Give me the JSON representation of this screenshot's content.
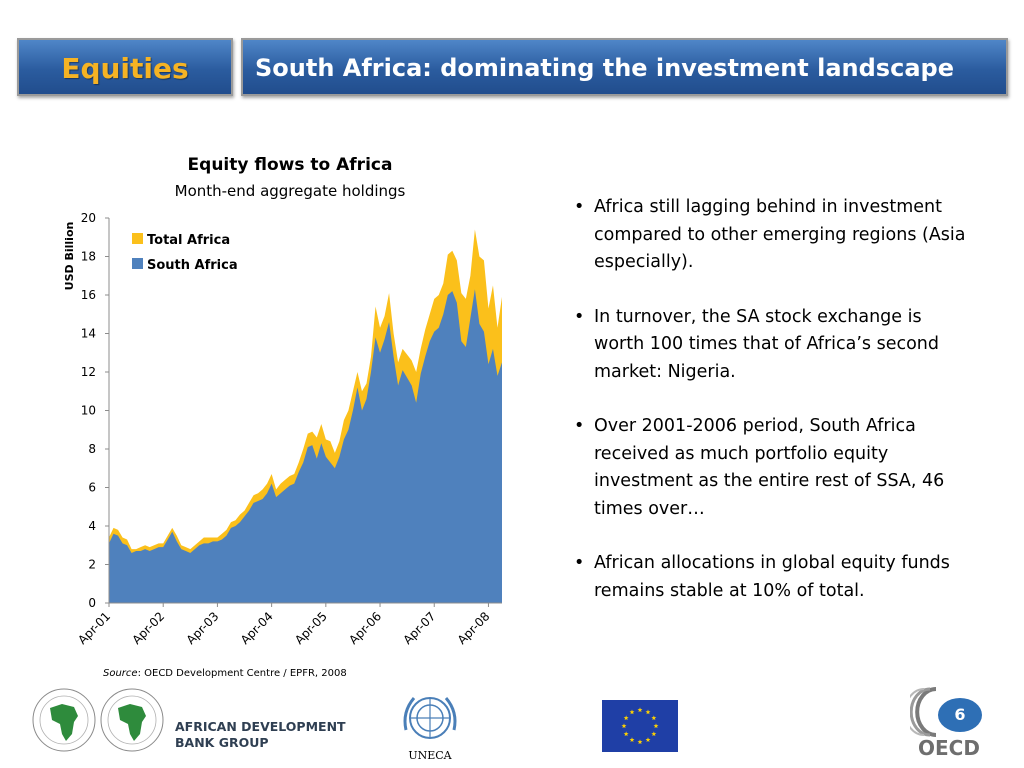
{
  "header": {
    "section": "Equities",
    "headline": "South Africa: dominating the investment landscape"
  },
  "chart_data": {
    "type": "area",
    "title": "Equity flows to Africa",
    "subtitle": "Month-end aggregate holdings",
    "ylabel": "USD Billion",
    "ylim": [
      0,
      20
    ],
    "yticks": [
      0,
      2,
      4,
      6,
      8,
      10,
      12,
      14,
      16,
      18,
      20
    ],
    "x_tick_labels": [
      "Apr-01",
      "Apr-02",
      "Apr-03",
      "Apr-04",
      "Apr-05",
      "Apr-06",
      "Apr-07",
      "Apr-08"
    ],
    "legend_position": "top-left",
    "grid": false,
    "x_start": "Apr-01",
    "frequency": "monthly",
    "series": [
      {
        "name": "Total Africa",
        "color": "#fbc01b",
        "values": [
          3.4,
          3.9,
          3.8,
          3.4,
          3.3,
          2.8,
          2.8,
          2.9,
          3.0,
          2.9,
          3.0,
          3.1,
          3.1,
          3.5,
          3.9,
          3.5,
          3.0,
          2.9,
          2.8,
          3.0,
          3.2,
          3.4,
          3.4,
          3.4,
          3.4,
          3.6,
          3.8,
          4.2,
          4.3,
          4.6,
          4.8,
          5.2,
          5.6,
          5.7,
          5.9,
          6.2,
          6.7,
          5.9,
          6.2,
          6.4,
          6.6,
          6.7,
          7.3,
          8.0,
          8.8,
          8.9,
          8.6,
          9.3,
          8.5,
          8.4,
          7.8,
          8.4,
          9.5,
          10.0,
          11.0,
          12.0,
          11.0,
          11.4,
          12.8,
          15.4,
          14.3,
          14.9,
          16.1,
          14.0,
          12.5,
          13.2,
          12.9,
          12.6,
          12.0,
          13.2,
          14.2,
          15.0,
          15.8,
          16.0,
          16.6,
          18.1,
          18.3,
          17.8,
          16.1,
          15.8,
          17.0,
          19.4,
          18.0,
          17.8,
          15.3,
          16.5,
          14.3,
          15.9
        ]
      },
      {
        "name": "South Africa",
        "color": "#4f81bd",
        "values": [
          3.1,
          3.6,
          3.5,
          3.1,
          3.0,
          2.6,
          2.7,
          2.7,
          2.8,
          2.7,
          2.8,
          2.9,
          2.9,
          3.3,
          3.7,
          3.2,
          2.8,
          2.7,
          2.6,
          2.8,
          3.0,
          3.1,
          3.1,
          3.2,
          3.2,
          3.3,
          3.5,
          3.9,
          4.0,
          4.2,
          4.5,
          4.8,
          5.2,
          5.3,
          5.4,
          5.7,
          6.2,
          5.5,
          5.7,
          5.9,
          6.1,
          6.2,
          6.8,
          7.3,
          8.1,
          8.2,
          7.5,
          8.3,
          7.6,
          7.3,
          7.0,
          7.6,
          8.5,
          9.0,
          10.0,
          11.2,
          10.0,
          10.6,
          12.0,
          13.8,
          13.0,
          13.7,
          14.6,
          12.8,
          11.3,
          12.1,
          11.7,
          11.3,
          10.4,
          11.9,
          12.8,
          13.6,
          14.1,
          14.3,
          15.0,
          16.0,
          16.2,
          15.6,
          13.6,
          13.3,
          14.8,
          16.3,
          14.5,
          14.1,
          12.4,
          13.2,
          11.8,
          12.5
        ]
      }
    ]
  },
  "bullets": [
    " Africa still lagging behind in investment compared to other emerging regions (Asia especially).",
    " In turnover, the SA stock exchange is worth 100 times that of Africa’s second market: Nigeria.",
    " Over 2001-2006 period, South Africa received as much portfolio equity investment as the entire rest of SSA, 46 times over…",
    "African allocations in global equity funds remains stable at 10% of total."
  ],
  "source": {
    "label": "Source",
    "text": ": OECD Development Centre / EPFR, 2008"
  },
  "footer": {
    "afdb_line1": "AFRICAN DEVELOPMENT",
    "afdb_line2": "BANK GROUP",
    "uneca": "UNECA",
    "page_number": "6",
    "oecd": "OECD"
  },
  "colors": {
    "title_bar": "#2b5c9f",
    "accent_gold": "#f5b324",
    "africa_green": "#2e8b3c",
    "eu_blue": "#1f3fa6",
    "eu_star": "#ffd200",
    "page_badge": "#2e6fb5"
  }
}
